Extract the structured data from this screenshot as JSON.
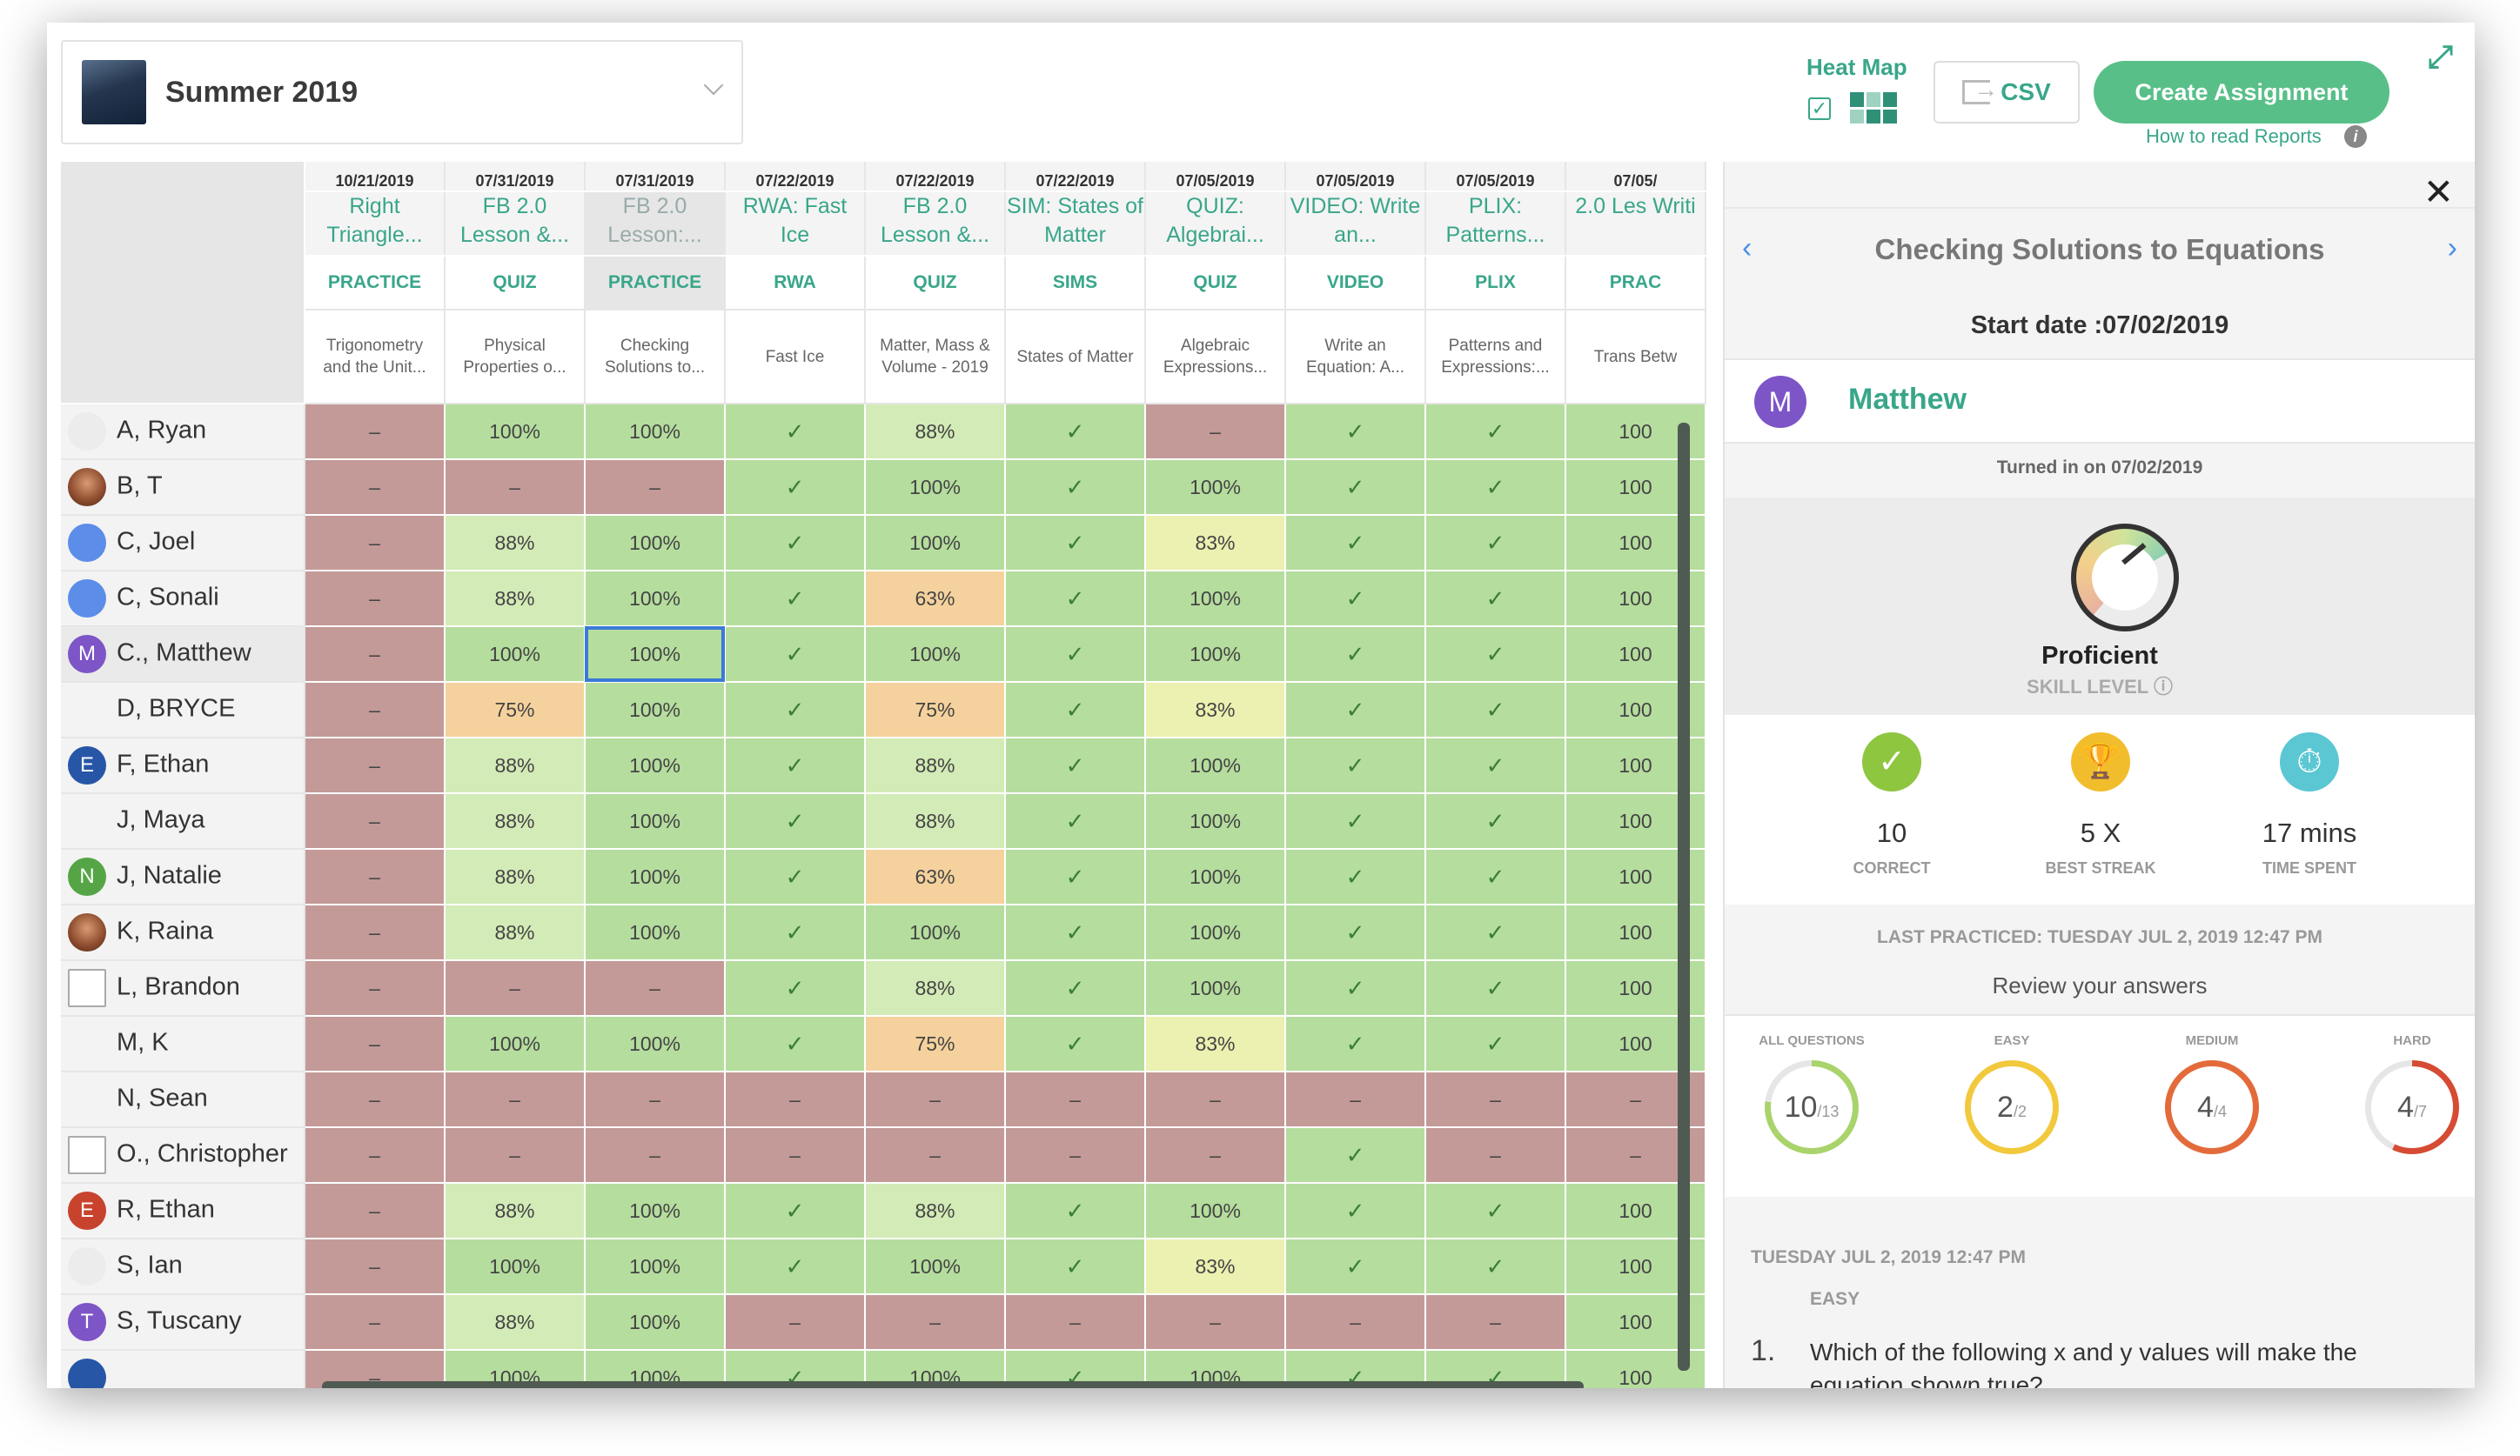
{
  "header": {
    "class_title": "Summer 2019",
    "heat_map_label": "Heat Map",
    "csv_label": "CSV",
    "create_label": "Create Assignment",
    "how_to_label": "How to read Reports"
  },
  "columns": [
    {
      "date": "10/21/2019",
      "title": "Right Triangle...",
      "type": "PRACTICE",
      "skill": "Trigonometry and the Unit..."
    },
    {
      "date": "07/31/2019",
      "title": "FB 2.0 Lesson &...",
      "type": "QUIZ",
      "skill": "Physical Properties o..."
    },
    {
      "date": "07/31/2019",
      "title": "FB 2.0 Lesson:...",
      "type": "PRACTICE",
      "skill": "Checking Solutions to..."
    },
    {
      "date": "07/22/2019",
      "title": "RWA: Fast Ice",
      "type": "RWA",
      "skill": "Fast Ice"
    },
    {
      "date": "07/22/2019",
      "title": "FB 2.0 Lesson &...",
      "type": "QUIZ",
      "skill": "Matter, Mass & Volume - 2019"
    },
    {
      "date": "07/22/2019",
      "title": "SIM: States of Matter",
      "type": "SIMS",
      "skill": "States of Matter"
    },
    {
      "date": "07/05/2019",
      "title": "QUIZ: Algebrai...",
      "type": "QUIZ",
      "skill": "Algebraic Expressions..."
    },
    {
      "date": "07/05/2019",
      "title": "VIDEO: Write an...",
      "type": "VIDEO",
      "skill": "Write an Equation: A..."
    },
    {
      "date": "07/05/2019",
      "title": "PLIX: Patterns...",
      "type": "PLIX",
      "skill": "Patterns and Expressions:..."
    },
    {
      "date": "07/05/",
      "title": "2.0 Les Writi",
      "type": "PRAC",
      "skill": "Trans Betw"
    }
  ],
  "students": [
    {
      "name": "A, Ryan",
      "avatar": "",
      "avatar_style": "plain",
      "cells": [
        [
          "–",
          "r"
        ],
        [
          "100%",
          "g"
        ],
        [
          "100%",
          "g"
        ],
        [
          "✓",
          "g"
        ],
        [
          "88%",
          "gl"
        ],
        [
          "✓",
          "g"
        ],
        [
          "–",
          "r"
        ],
        [
          "✓",
          "g"
        ],
        [
          "✓",
          "g"
        ],
        [
          "100",
          "g"
        ]
      ]
    },
    {
      "name": "B, T",
      "avatar": "",
      "avatar_style": "photo",
      "cells": [
        [
          "–",
          "r"
        ],
        [
          "–",
          "r"
        ],
        [
          "–",
          "r"
        ],
        [
          "✓",
          "g"
        ],
        [
          "100%",
          "g"
        ],
        [
          "✓",
          "g"
        ],
        [
          "100%",
          "g"
        ],
        [
          "✓",
          "g"
        ],
        [
          "✓",
          "g"
        ],
        [
          "100",
          "g"
        ]
      ]
    },
    {
      "name": "C, Joel",
      "avatar": "",
      "avatar_style": "blue",
      "cells": [
        [
          "–",
          "r"
        ],
        [
          "88%",
          "gl"
        ],
        [
          "100%",
          "g"
        ],
        [
          "✓",
          "g"
        ],
        [
          "100%",
          "g"
        ],
        [
          "✓",
          "g"
        ],
        [
          "83%",
          "y"
        ],
        [
          "✓",
          "g"
        ],
        [
          "✓",
          "g"
        ],
        [
          "100",
          "g"
        ]
      ]
    },
    {
      "name": "C, Sonali",
      "avatar": "",
      "avatar_style": "blue",
      "cells": [
        [
          "–",
          "r"
        ],
        [
          "88%",
          "gl"
        ],
        [
          "100%",
          "g"
        ],
        [
          "✓",
          "g"
        ],
        [
          "63%",
          "o"
        ],
        [
          "✓",
          "g"
        ],
        [
          "100%",
          "g"
        ],
        [
          "✓",
          "g"
        ],
        [
          "✓",
          "g"
        ],
        [
          "100",
          "g"
        ]
      ]
    },
    {
      "name": "C., Matthew",
      "avatar": "M",
      "avatar_style": "purple",
      "cells": [
        [
          "–",
          "r"
        ],
        [
          "100%",
          "g"
        ],
        [
          "100%",
          "g"
        ],
        [
          "✓",
          "g"
        ],
        [
          "100%",
          "g"
        ],
        [
          "✓",
          "g"
        ],
        [
          "100%",
          "g"
        ],
        [
          "✓",
          "g"
        ],
        [
          "✓",
          "g"
        ],
        [
          "100",
          "g"
        ]
      ]
    },
    {
      "name": "D, BRYCE",
      "avatar": "",
      "avatar_style": "sil",
      "cells": [
        [
          "–",
          "r"
        ],
        [
          "75%",
          "o"
        ],
        [
          "100%",
          "g"
        ],
        [
          "✓",
          "g"
        ],
        [
          "75%",
          "o"
        ],
        [
          "✓",
          "g"
        ],
        [
          "83%",
          "y"
        ],
        [
          "✓",
          "g"
        ],
        [
          "✓",
          "g"
        ],
        [
          "100",
          "g"
        ]
      ]
    },
    {
      "name": "F, Ethan",
      "avatar": "E",
      "avatar_style": "navy",
      "cells": [
        [
          "–",
          "r"
        ],
        [
          "88%",
          "gl"
        ],
        [
          "100%",
          "g"
        ],
        [
          "✓",
          "g"
        ],
        [
          "88%",
          "gl"
        ],
        [
          "✓",
          "g"
        ],
        [
          "100%",
          "g"
        ],
        [
          "✓",
          "g"
        ],
        [
          "✓",
          "g"
        ],
        [
          "100",
          "g"
        ]
      ]
    },
    {
      "name": "J, Maya",
      "avatar": "",
      "avatar_style": "sil",
      "cells": [
        [
          "–",
          "r"
        ],
        [
          "88%",
          "gl"
        ],
        [
          "100%",
          "g"
        ],
        [
          "✓",
          "g"
        ],
        [
          "88%",
          "gl"
        ],
        [
          "✓",
          "g"
        ],
        [
          "100%",
          "g"
        ],
        [
          "✓",
          "g"
        ],
        [
          "✓",
          "g"
        ],
        [
          "100",
          "g"
        ]
      ]
    },
    {
      "name": "J, Natalie",
      "avatar": "N",
      "avatar_style": "green",
      "cells": [
        [
          "–",
          "r"
        ],
        [
          "88%",
          "gl"
        ],
        [
          "100%",
          "g"
        ],
        [
          "✓",
          "g"
        ],
        [
          "63%",
          "o"
        ],
        [
          "✓",
          "g"
        ],
        [
          "100%",
          "g"
        ],
        [
          "✓",
          "g"
        ],
        [
          "✓",
          "g"
        ],
        [
          "100",
          "g"
        ]
      ]
    },
    {
      "name": "K, Raina",
      "avatar": "",
      "avatar_style": "photo",
      "cells": [
        [
          "–",
          "r"
        ],
        [
          "88%",
          "gl"
        ],
        [
          "100%",
          "g"
        ],
        [
          "✓",
          "g"
        ],
        [
          "100%",
          "g"
        ],
        [
          "✓",
          "g"
        ],
        [
          "100%",
          "g"
        ],
        [
          "✓",
          "g"
        ],
        [
          "✓",
          "g"
        ],
        [
          "100",
          "g"
        ]
      ]
    },
    {
      "name": "L, Brandon",
      "avatar": "",
      "avatar_style": "img",
      "cells": [
        [
          "–",
          "r"
        ],
        [
          "–",
          "r"
        ],
        [
          "–",
          "r"
        ],
        [
          "✓",
          "g"
        ],
        [
          "88%",
          "gl"
        ],
        [
          "✓",
          "g"
        ],
        [
          "100%",
          "g"
        ],
        [
          "✓",
          "g"
        ],
        [
          "✓",
          "g"
        ],
        [
          "100",
          "g"
        ]
      ]
    },
    {
      "name": "M, K",
      "avatar": "",
      "avatar_style": "sil",
      "cells": [
        [
          "–",
          "r"
        ],
        [
          "100%",
          "g"
        ],
        [
          "100%",
          "g"
        ],
        [
          "✓",
          "g"
        ],
        [
          "75%",
          "o"
        ],
        [
          "✓",
          "g"
        ],
        [
          "83%",
          "y"
        ],
        [
          "✓",
          "g"
        ],
        [
          "✓",
          "g"
        ],
        [
          "100",
          "g"
        ]
      ]
    },
    {
      "name": "N, Sean",
      "avatar": "",
      "avatar_style": "sil",
      "cells": [
        [
          "–",
          "r"
        ],
        [
          "–",
          "r"
        ],
        [
          "–",
          "r"
        ],
        [
          "–",
          "r"
        ],
        [
          "–",
          "r"
        ],
        [
          "–",
          "r"
        ],
        [
          "–",
          "r"
        ],
        [
          "–",
          "r"
        ],
        [
          "–",
          "r"
        ],
        [
          "–",
          "r"
        ]
      ]
    },
    {
      "name": "O., Christopher",
      "avatar": "",
      "avatar_style": "img",
      "cells": [
        [
          "–",
          "r"
        ],
        [
          "–",
          "r"
        ],
        [
          "–",
          "r"
        ],
        [
          "–",
          "r"
        ],
        [
          "–",
          "r"
        ],
        [
          "–",
          "r"
        ],
        [
          "–",
          "r"
        ],
        [
          "✓",
          "g"
        ],
        [
          "–",
          "r"
        ],
        [
          "–",
          "r"
        ]
      ]
    },
    {
      "name": "R, Ethan",
      "avatar": "E",
      "avatar_style": "red",
      "cells": [
        [
          "–",
          "r"
        ],
        [
          "88%",
          "gl"
        ],
        [
          "100%",
          "g"
        ],
        [
          "✓",
          "g"
        ],
        [
          "88%",
          "gl"
        ],
        [
          "✓",
          "g"
        ],
        [
          "100%",
          "g"
        ],
        [
          "✓",
          "g"
        ],
        [
          "✓",
          "g"
        ],
        [
          "100",
          "g"
        ]
      ]
    },
    {
      "name": "S, Ian",
      "avatar": "",
      "avatar_style": "plain",
      "cells": [
        [
          "–",
          "r"
        ],
        [
          "100%",
          "g"
        ],
        [
          "100%",
          "g"
        ],
        [
          "✓",
          "g"
        ],
        [
          "100%",
          "g"
        ],
        [
          "✓",
          "g"
        ],
        [
          "83%",
          "y"
        ],
        [
          "✓",
          "g"
        ],
        [
          "✓",
          "g"
        ],
        [
          "100",
          "g"
        ]
      ]
    },
    {
      "name": "S, Tuscany",
      "avatar": "T",
      "avatar_style": "purple",
      "cells": [
        [
          "–",
          "r"
        ],
        [
          "88%",
          "gl"
        ],
        [
          "100%",
          "g"
        ],
        [
          "–",
          "r"
        ],
        [
          "–",
          "r"
        ],
        [
          "–",
          "r"
        ],
        [
          "–",
          "r"
        ],
        [
          "–",
          "r"
        ],
        [
          "–",
          "r"
        ],
        [
          "100",
          "g"
        ]
      ]
    },
    {
      "name": "",
      "avatar": "",
      "avatar_style": "navy",
      "cells": [
        [
          "–",
          "r"
        ],
        [
          "100%",
          "g"
        ],
        [
          "100%",
          "g"
        ],
        [
          "✓",
          "g"
        ],
        [
          "100%",
          "g"
        ],
        [
          "✓",
          "g"
        ],
        [
          "100%",
          "g"
        ],
        [
          "✓",
          "g"
        ],
        [
          "✓",
          "g"
        ],
        [
          "100",
          "g"
        ]
      ]
    }
  ],
  "panel": {
    "title": "Checking Solutions to Equations",
    "start_date": "Start date :07/02/2019",
    "student_initial": "M",
    "student_name": "Matthew",
    "turned_in": "Turned in on 07/02/2019",
    "skill_name": "Proficient",
    "skill_label": "SKILL LEVEL",
    "stats": [
      {
        "value": "10",
        "label": "CORRECT",
        "icon": "✓",
        "color": "#8ec63f"
      },
      {
        "value": "5 X",
        "label": "BEST STREAK",
        "icon": "🏆",
        "color": "#f2bd2c"
      },
      {
        "value": "17 mins",
        "label": "TIME SPENT",
        "icon": "⏱",
        "color": "#5bc7d3"
      }
    ],
    "last_practiced": "LAST PRACTICED: TUESDAY JUL 2, 2019 12:47 PM",
    "review": "Review your answers",
    "rings": [
      {
        "label": "ALL QUESTIONS",
        "num": "10",
        "den": "/13",
        "fraction": 0.77,
        "color": "#a9d36b"
      },
      {
        "label": "EASY",
        "num": "2",
        "den": "/2",
        "fraction": 1.0,
        "color": "#f2c83c"
      },
      {
        "label": "MEDIUM",
        "num": "4",
        "den": "/4",
        "fraction": 1.0,
        "color": "#e36b3b"
      },
      {
        "label": "HARD",
        "num": "4",
        "den": "/7",
        "fraction": 0.57,
        "color": "#d64b33"
      }
    ],
    "question_date": "TUESDAY JUL 2, 2019 12:47 PM",
    "question_difficulty": "EASY",
    "question_number": "1.",
    "question_text": "Which of the following x and y values will make the equation shown true?"
  }
}
